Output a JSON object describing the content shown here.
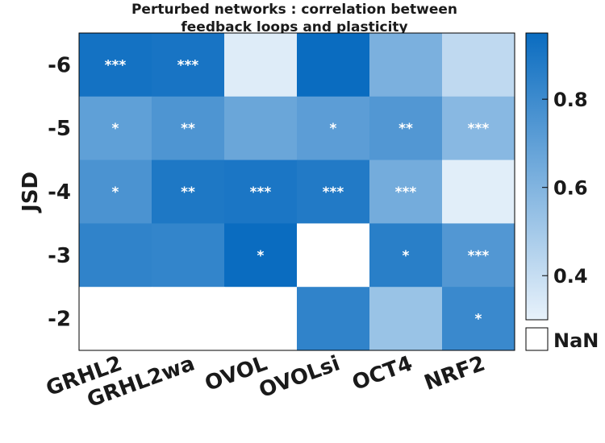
{
  "chart_data": {
    "type": "heatmap",
    "title": [
      "Perturbed networks : correlation between",
      "feedback loops and plasticity"
    ],
    "xlabel": "",
    "ylabel": "JSD",
    "x_categories": [
      "GRHL2",
      "GRHL2wa",
      "OVOL",
      "OVOLsi",
      "OCT4",
      "NRF2"
    ],
    "y_categories": [
      "-6",
      "-5",
      "-4",
      "-3",
      "-2"
    ],
    "values": [
      [
        0.92,
        0.91,
        0.33,
        0.96,
        0.62,
        0.42
      ],
      [
        0.7,
        0.75,
        0.67,
        0.71,
        0.74,
        0.58
      ],
      [
        0.76,
        0.89,
        0.9,
        0.88,
        0.64,
        0.32
      ],
      [
        0.84,
        0.83,
        0.95,
        null,
        0.86,
        0.74
      ],
      [
        null,
        null,
        null,
        0.84,
        0.53,
        0.81
      ]
    ],
    "significance": [
      [
        "***",
        "***",
        "",
        "",
        "",
        ""
      ],
      [
        "*",
        "**",
        "",
        "*",
        "**",
        "***"
      ],
      [
        "*",
        "**",
        "***",
        "***",
        "***",
        ""
      ],
      [
        "",
        "",
        "*",
        "",
        "*",
        "***"
      ],
      [
        "",
        "",
        "",
        "",
        "",
        "*"
      ]
    ],
    "colorbar": {
      "range": [
        0.3,
        0.95
      ],
      "ticks": [
        "0.4",
        "0.6",
        "0.8"
      ],
      "low_color": "#e8f2fb",
      "high_color": "#0a6cc0",
      "nan_label": "NaN",
      "nan_color": "#ffffff"
    }
  }
}
